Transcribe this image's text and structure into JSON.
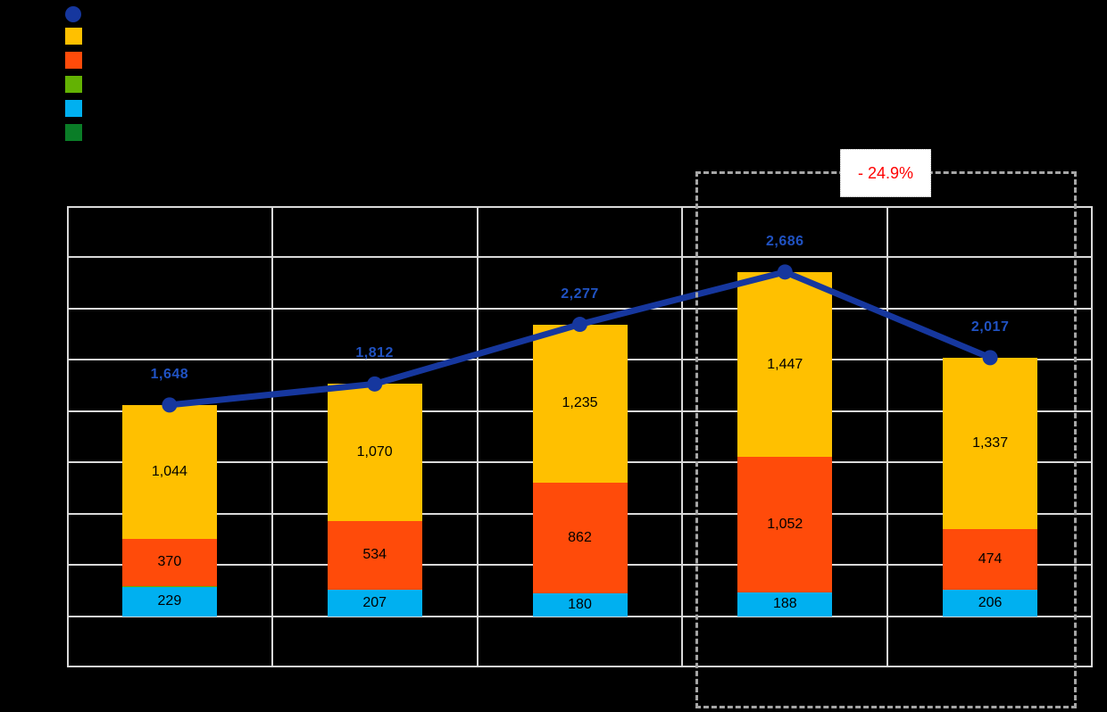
{
  "background_color": "#000000",
  "legend": {
    "position": "top-left",
    "items": [
      {
        "name": "total-line-marker",
        "shape": "circle",
        "color": "#16379E"
      },
      {
        "name": "yellow-top-segment",
        "shape": "square",
        "color": "#FFC000"
      },
      {
        "name": "orange-middle-segment",
        "shape": "square",
        "color": "#FF4B0A"
      },
      {
        "name": "green-thin-segment",
        "shape": "square",
        "color": "#63B203"
      },
      {
        "name": "cyan-bottom-segment",
        "shape": "square",
        "color": "#00B0F0"
      },
      {
        "name": "dark-green-segment",
        "shape": "square",
        "color": "#0A7D27"
      }
    ]
  },
  "annotation": {
    "label": "- 24.9%",
    "text_color": "#FF0000",
    "box_background": "#FFFFFF",
    "box_border_color": "#BFBFBF",
    "dashed_rect_color": "#A6A6A6",
    "highlights": "last two categories"
  },
  "chart_data": {
    "type": "bar",
    "stacked": true,
    "overlay_line": true,
    "categories": [
      "",
      "",
      "",
      "",
      ""
    ],
    "series": [
      {
        "name": "cyan-bottom-segment",
        "color": "#00B0F0",
        "values": [
          229,
          207,
          180,
          188,
          206
        ]
      },
      {
        "name": "green-thin-segment",
        "color": "#63B203",
        "values": [
          5,
          0,
          0,
          0,
          0
        ]
      },
      {
        "name": "orange-middle-segment",
        "color": "#FF4B0A",
        "values": [
          370,
          534,
          862,
          1052,
          474
        ]
      },
      {
        "name": "yellow-top-segment",
        "color": "#FFC000",
        "values": [
          1044,
          1070,
          1235,
          1447,
          1337
        ]
      }
    ],
    "line_series": {
      "name": "total-line",
      "color": "#16379E",
      "label_color": "#2052C2",
      "values": [
        1648,
        1812,
        2277,
        2686,
        2017
      ]
    },
    "bar_label_color": "#000000",
    "value_axis": {
      "min": -400,
      "max": 3200,
      "gridline_step": 400,
      "tick_labels_visible": false
    },
    "grid": true,
    "gridline_color": "#D9D9D9",
    "title": "",
    "xlabel": "",
    "ylabel": ""
  }
}
